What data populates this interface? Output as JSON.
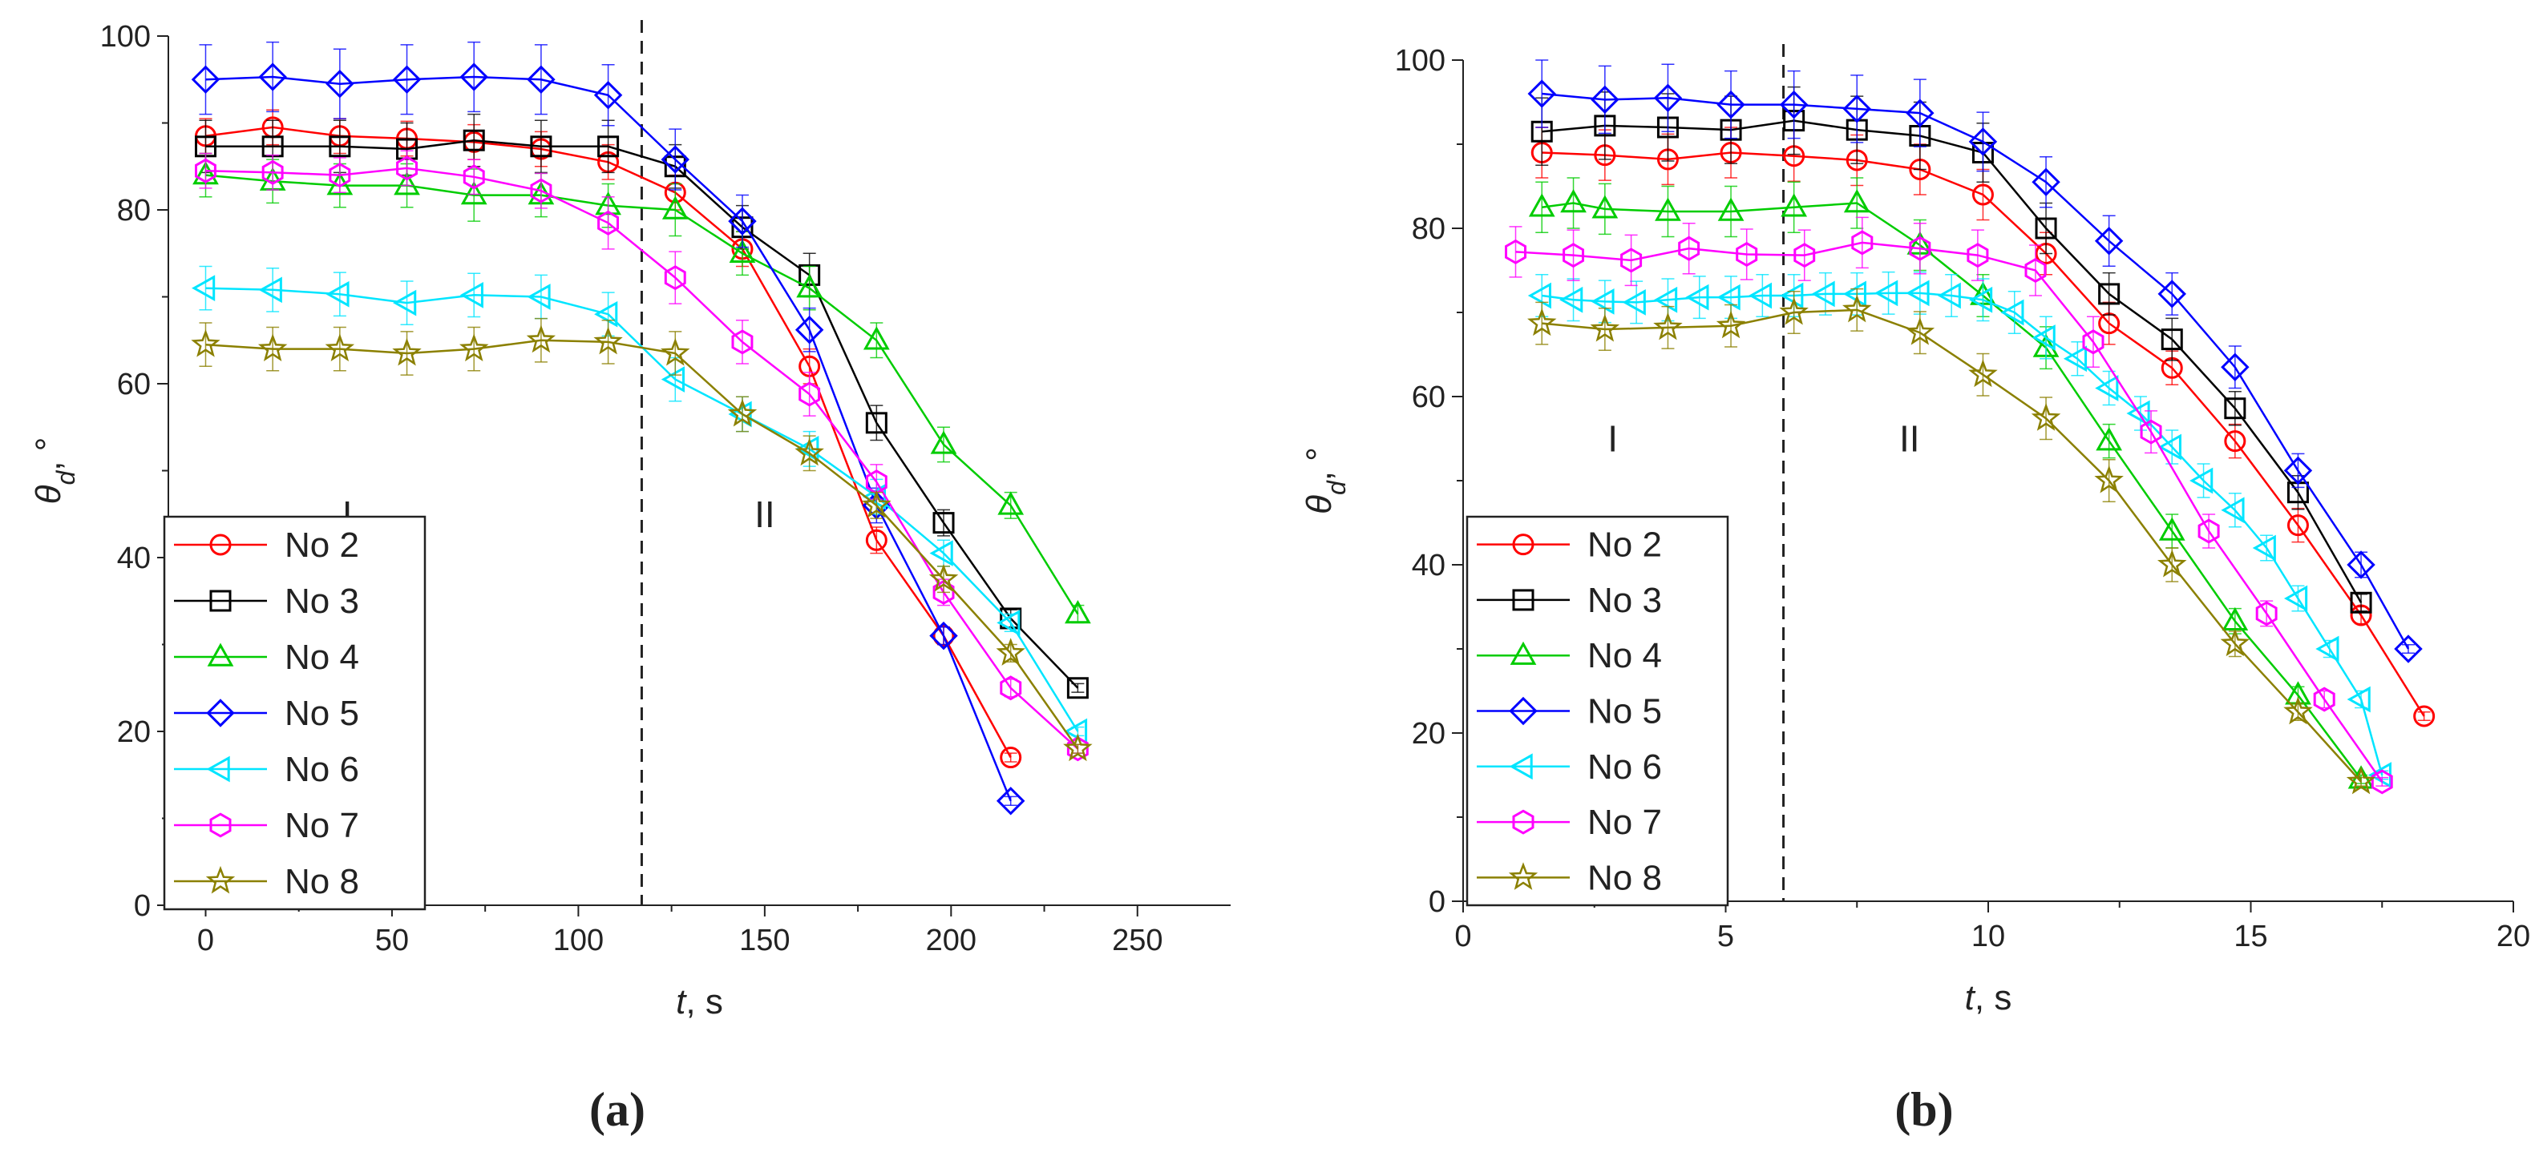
{
  "figure": {
    "panels": [
      {
        "id": "a",
        "label": "(a)"
      },
      {
        "id": "b",
        "label": "(b)"
      }
    ]
  },
  "chart_data": [
    {
      "type": "line",
      "panel": "(a)",
      "xlabel_var": "t",
      "xlabel_unit": ", s",
      "ylabel_var": "θ",
      "ylabel_sub": "d",
      "ylabel_unit": ", °",
      "xlim": [
        -10,
        275
      ],
      "ylim": [
        0,
        100
      ],
      "xticks": [
        0,
        50,
        100,
        150,
        200,
        250
      ],
      "yticks": [
        0,
        20,
        40,
        60,
        80,
        100
      ],
      "divider_x": 117,
      "regions": [
        {
          "label": "I",
          "x": 38,
          "y": 45
        },
        {
          "label": "II",
          "x": 150,
          "y": 45
        }
      ],
      "legend": [
        "No 2",
        "No 3",
        "No 4",
        "No 5",
        "No 6",
        "No 7",
        "No 8"
      ],
      "series": [
        {
          "name": "No 2",
          "color": "#ff0000",
          "marker": "circle",
          "x": [
            0,
            18,
            36,
            54,
            72,
            90,
            108,
            126,
            144,
            162,
            180,
            198,
            216
          ],
          "y": [
            88.5,
            89.5,
            88.5,
            88.2,
            87.8,
            87,
            85.5,
            82,
            75.5,
            62,
            42,
            31,
            17
          ],
          "err": [
            2,
            2,
            2,
            2,
            2,
            2,
            2,
            2,
            2,
            2,
            1.5,
            1,
            0.5
          ]
        },
        {
          "name": "No 3",
          "color": "#000000",
          "marker": "square",
          "x": [
            0,
            18,
            36,
            54,
            72,
            90,
            108,
            126,
            144,
            162,
            180,
            198,
            216,
            234
          ],
          "y": [
            87.3,
            87.3,
            87.3,
            87,
            88,
            87.3,
            87.3,
            85,
            78,
            72.5,
            55.5,
            44,
            33,
            25
          ],
          "err": [
            3,
            3,
            3,
            3,
            3,
            3,
            3,
            2.5,
            2.5,
            2.5,
            2,
            1.5,
            1,
            0.5
          ]
        },
        {
          "name": "No 4",
          "color": "#00cc00",
          "marker": "triangle-up",
          "x": [
            0,
            18,
            36,
            54,
            72,
            90,
            108,
            126,
            144,
            162,
            180,
            198,
            216,
            234
          ],
          "y": [
            84,
            83.3,
            82.8,
            82.8,
            81.7,
            81.7,
            80.5,
            80,
            75,
            71,
            65,
            53,
            46,
            33.5
          ],
          "err": [
            2.5,
            2.5,
            2.5,
            2.5,
            3,
            2.5,
            2.5,
            3,
            2.5,
            2.5,
            2,
            2,
            1.5,
            1
          ]
        },
        {
          "name": "No 5",
          "color": "#0000ff",
          "marker": "diamond",
          "x": [
            0,
            18,
            36,
            54,
            72,
            90,
            108,
            126,
            144,
            162,
            180,
            198,
            216
          ],
          "y": [
            95,
            95.3,
            94.5,
            95,
            95.3,
            95,
            93.2,
            85.8,
            78.7,
            66.2,
            46,
            31,
            12
          ],
          "err": [
            4,
            4,
            4,
            4,
            4,
            4,
            3.5,
            3.5,
            3,
            2.5,
            2,
            1,
            0.5
          ]
        },
        {
          "name": "No 6",
          "color": "#00e5ff",
          "marker": "triangle-left",
          "x": [
            0,
            18,
            36,
            54,
            72,
            90,
            108,
            126,
            144,
            162,
            180,
            198,
            216,
            234
          ],
          "y": [
            71,
            70.8,
            70.3,
            69.3,
            70.2,
            70,
            68,
            60.5,
            56.5,
            52.5,
            47,
            40.5,
            32.5,
            20
          ],
          "err": [
            2.5,
            2.5,
            2.5,
            2.5,
            2.5,
            2.5,
            2.5,
            2.5,
            2,
            2,
            2,
            1.5,
            1,
            0.5
          ]
        },
        {
          "name": "No 7",
          "color": "#ff00ff",
          "marker": "hexagon",
          "x": [
            0,
            18,
            36,
            54,
            72,
            90,
            108,
            126,
            144,
            162,
            180,
            198,
            216,
            234
          ],
          "y": [
            84.5,
            84.3,
            84,
            84.8,
            83.8,
            82.2,
            78.5,
            72.2,
            64.8,
            58.8,
            48.7,
            36,
            25,
            18
          ],
          "err": [
            2,
            2,
            2,
            2,
            2,
            2,
            3,
            3,
            2.5,
            2.5,
            2,
            1.5,
            1,
            0.5
          ]
        },
        {
          "name": "No 8",
          "color": "#8b8000",
          "marker": "star",
          "x": [
            0,
            18,
            36,
            54,
            72,
            90,
            108,
            126,
            144,
            162,
            180,
            198,
            216,
            234
          ],
          "y": [
            64.5,
            64,
            64,
            63.5,
            64,
            65,
            64.8,
            63.5,
            56.5,
            52,
            46,
            37.5,
            29,
            18
          ],
          "err": [
            2.5,
            2.5,
            2.5,
            2.5,
            2.5,
            2.5,
            2.5,
            2.5,
            2,
            2,
            1.5,
            1.5,
            1,
            0.5
          ]
        }
      ]
    },
    {
      "type": "line",
      "panel": "(b)",
      "xlabel_var": "t",
      "xlabel_unit": ", s",
      "ylabel_var": "θ",
      "ylabel_sub": "d",
      "ylabel_unit": ", °",
      "xlim": [
        0,
        20
      ],
      "ylim": [
        0,
        100
      ],
      "xticks": [
        0,
        5,
        10,
        15,
        20
      ],
      "yticks": [
        0,
        20,
        40,
        60,
        80,
        100
      ],
      "divider_x": 6.1,
      "regions": [
        {
          "label": "I",
          "x": 2.85,
          "y": 55
        },
        {
          "label": "II",
          "x": 8.5,
          "y": 55
        }
      ],
      "legend": [
        "No 2",
        "No 3",
        "No 4",
        "No 5",
        "No 6",
        "No 7",
        "No 8"
      ],
      "series": [
        {
          "name": "No 2",
          "color": "#ff0000",
          "marker": "circle",
          "x": [
            1.5,
            2.7,
            3.9,
            5.1,
            6.3,
            7.5,
            8.7,
            9.9,
            11.1,
            12.3,
            13.5,
            14.7,
            15.9,
            17.1,
            18.3
          ],
          "y": [
            89,
            88.7,
            88.2,
            89,
            88.6,
            88.1,
            87,
            84,
            77,
            68.7,
            63.4,
            54.7,
            44.7,
            34,
            22
          ],
          "err": [
            3,
            3,
            3,
            3,
            3,
            3,
            3,
            3,
            2.5,
            2.5,
            2,
            2,
            2,
            1,
            0.5
          ]
        },
        {
          "name": "No 3",
          "color": "#000000",
          "marker": "square",
          "x": [
            1.5,
            2.7,
            3.9,
            5.1,
            6.3,
            7.5,
            8.7,
            9.9,
            11.1,
            12.3,
            13.5,
            14.7,
            15.9,
            17.1
          ],
          "y": [
            91.5,
            92.2,
            92,
            91.7,
            92.8,
            91.7,
            91,
            89,
            80,
            72.2,
            66.8,
            58.6,
            48.6,
            35.5
          ],
          "err": [
            4,
            4,
            4,
            4,
            4,
            4,
            4,
            3.5,
            3,
            2.5,
            2.5,
            2,
            2,
            1
          ]
        },
        {
          "name": "No 4",
          "color": "#00cc00",
          "marker": "triangle-up",
          "x": [
            1.5,
            2.1,
            2.7,
            3.9,
            5.1,
            6.3,
            7.5,
            8.7,
            9.9,
            11.1,
            12.3,
            13.5,
            14.7,
            15.9,
            17.1
          ],
          "y": [
            82.5,
            83,
            82.3,
            82,
            82,
            82.5,
            83,
            78,
            72,
            65.8,
            54.7,
            44,
            33.3,
            24.5,
            14.5
          ],
          "err": [
            3,
            3,
            3,
            3,
            3,
            3,
            3,
            3,
            2.5,
            2.5,
            2,
            2,
            1.5,
            1,
            0.5
          ]
        },
        {
          "name": "No 5",
          "color": "#0000ff",
          "marker": "diamond",
          "x": [
            1.5,
            2.7,
            3.9,
            5.1,
            6.3,
            7.5,
            8.7,
            9.9,
            11.1,
            12.3,
            13.5,
            14.7,
            15.9,
            17.1,
            18.0
          ],
          "y": [
            96,
            95.3,
            95.5,
            94.7,
            94.7,
            94.2,
            93.7,
            90.3,
            85.5,
            78.5,
            72.2,
            63.5,
            51.2,
            40,
            30
          ],
          "err": [
            4,
            4,
            4,
            4,
            4,
            4,
            4,
            3.5,
            3,
            3,
            2.5,
            2.5,
            2,
            1.5,
            0.5
          ]
        },
        {
          "name": "No 6",
          "color": "#00e5ff",
          "marker": "triangle-left",
          "x": [
            1.5,
            2.1,
            2.7,
            3.3,
            3.9,
            4.5,
            5.1,
            5.7,
            6.3,
            6.9,
            7.5,
            8.1,
            8.7,
            9.3,
            9.9,
            10.5,
            11.1,
            11.7,
            12.3,
            12.9,
            13.5,
            14.1,
            14.7,
            15.3,
            15.9,
            16.5,
            17.1,
            17.5
          ],
          "y": [
            72,
            71.5,
            71.3,
            71.2,
            71.5,
            71.8,
            71.8,
            72,
            72,
            72.2,
            72.2,
            72.3,
            72.3,
            72,
            71.5,
            70,
            67,
            64.5,
            61,
            58,
            54,
            50,
            46.5,
            42,
            36,
            30,
            24,
            15
          ],
          "err": [
            2.5,
            2.5,
            2.5,
            2.5,
            2.5,
            2.5,
            2.5,
            2.5,
            2.5,
            2.5,
            2.5,
            2.5,
            2.5,
            2.5,
            2.5,
            2.5,
            2.5,
            2,
            2,
            2,
            2,
            2,
            2,
            1.5,
            1.5,
            1,
            1,
            0.5
          ]
        },
        {
          "name": "No 7",
          "color": "#ff00ff",
          "marker": "hexagon",
          "x": [
            1.0,
            2.1,
            3.2,
            4.3,
            5.4,
            6.5,
            7.6,
            8.7,
            9.8,
            10.9,
            12.0,
            13.1,
            14.2,
            15.3,
            16.4,
            17.5
          ],
          "y": [
            77.2,
            76.8,
            76.2,
            77.6,
            76.9,
            76.8,
            78.3,
            77.6,
            76.8,
            75,
            66.5,
            55.8,
            44,
            34.2,
            24,
            14.2
          ],
          "err": [
            3,
            3,
            3,
            3,
            3,
            3,
            3,
            3,
            3,
            3,
            3,
            2.5,
            2,
            1.5,
            1,
            0.5
          ]
        },
        {
          "name": "No 8",
          "color": "#8b8000",
          "marker": "star",
          "x": [
            1.5,
            2.7,
            3.9,
            5.1,
            6.3,
            7.5,
            8.7,
            9.9,
            11.1,
            12.3,
            13.5,
            14.7,
            15.9,
            17.1
          ],
          "y": [
            68.7,
            68,
            68.2,
            68.4,
            70,
            70.3,
            67.6,
            62.6,
            57.4,
            50,
            40,
            30.6,
            22.5,
            14.2
          ],
          "err": [
            2.5,
            2.5,
            2.5,
            2.5,
            2.5,
            2.5,
            2.5,
            2.5,
            2.5,
            2.5,
            2,
            1.5,
            1,
            0.5
          ]
        }
      ]
    }
  ]
}
